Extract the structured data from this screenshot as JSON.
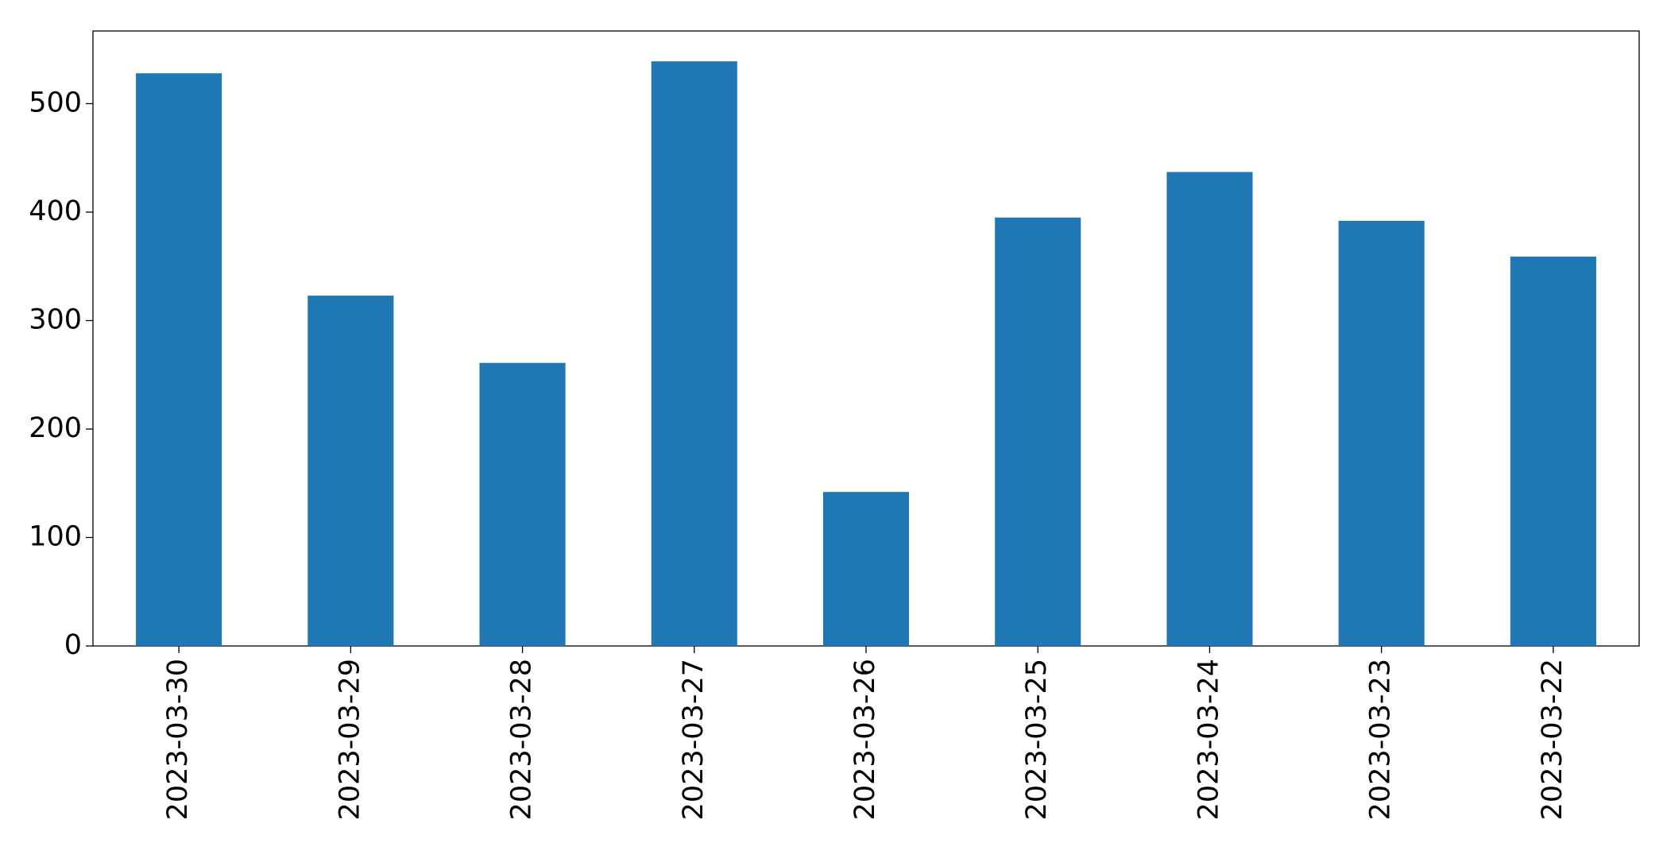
{
  "chart_data": {
    "type": "bar",
    "categories": [
      "2023-03-30",
      "2023-03-29",
      "2023-03-28",
      "2023-03-27",
      "2023-03-26",
      "2023-03-25",
      "2023-03-24",
      "2023-03-23",
      "2023-03-22"
    ],
    "values": [
      528,
      323,
      261,
      539,
      142,
      395,
      437,
      392,
      359
    ],
    "color": "#1f77b4",
    "ylim": [
      0,
      567
    ],
    "yticks": [
      0,
      100,
      200,
      300,
      400,
      500
    ],
    "grid": false
  }
}
